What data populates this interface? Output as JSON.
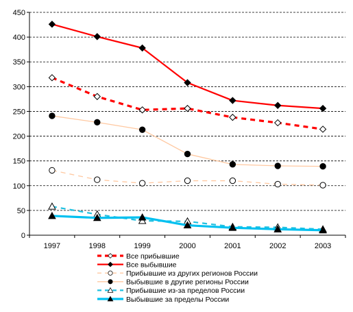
{
  "chart_data": {
    "type": "line",
    "x": [
      "1997",
      "1998",
      "1999",
      "2000",
      "2001",
      "2002",
      "2003"
    ],
    "ylim": [
      0,
      450
    ],
    "yticks": [
      0,
      50,
      100,
      150,
      200,
      250,
      300,
      350,
      400,
      450
    ],
    "grid": "horizontal-dashed",
    "legend_position": "bottom",
    "series": [
      {
        "name": "Все прибывшие",
        "values": [
          318,
          280,
          253,
          256,
          238,
          227,
          214
        ],
        "color": "#ff0000",
        "dash": "dashed",
        "width": "thick",
        "marker": "diamond-open"
      },
      {
        "name": "Все выбывшие",
        "values": [
          426,
          401,
          378,
          308,
          272,
          262,
          256
        ],
        "color": "#ff0000",
        "dash": "solid",
        "width": "medium",
        "marker": "diamond-filled"
      },
      {
        "name": "Прибывшие из других регионов России",
        "values": [
          131,
          112,
          105,
          110,
          110,
          103,
          101
        ],
        "color": "#ffc8a0",
        "dash": "dashed",
        "width": "thin",
        "marker": "circle-open"
      },
      {
        "name": "Выбывшие в другие регионы России",
        "values": [
          241,
          228,
          213,
          164,
          143,
          140,
          139
        ],
        "color": "#ffc8a0",
        "dash": "solid",
        "width": "thin",
        "marker": "circle-filled"
      },
      {
        "name": "Прибывшие из-за пределов России",
        "values": [
          58,
          42,
          29,
          28,
          17,
          16,
          12
        ],
        "color": "#20c0e0",
        "dash": "dashed",
        "width": "medium",
        "marker": "triangle-open"
      },
      {
        "name": "Выбывшие за пределы России",
        "values": [
          39,
          35,
          36,
          20,
          15,
          12,
          10
        ],
        "color": "#00c0f0",
        "dash": "solid",
        "width": "thick",
        "marker": "triangle-filled"
      }
    ]
  }
}
